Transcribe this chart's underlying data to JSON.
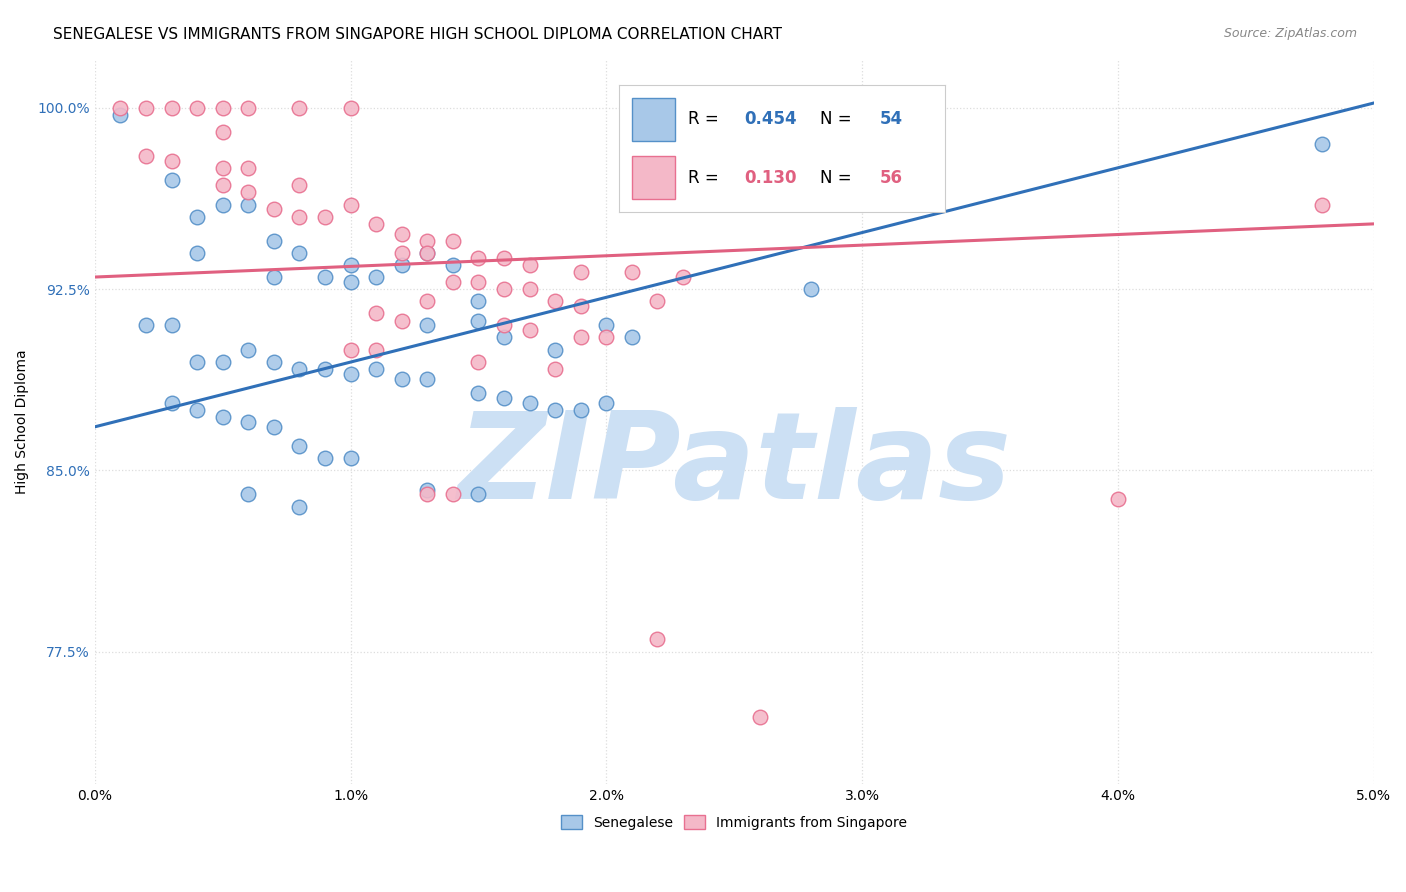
{
  "title": "SENEGALESE VS IMMIGRANTS FROM SINGAPORE HIGH SCHOOL DIPLOMA CORRELATION CHART",
  "source": "Source: ZipAtlas.com",
  "ylabel": "High School Diploma",
  "watermark": "ZIPatlas",
  "blue_color": "#a8c8e8",
  "pink_color": "#f4b8c8",
  "blue_edge_color": "#5590c8",
  "pink_edge_color": "#e87090",
  "blue_line_color": "#3070b8",
  "pink_line_color": "#e06080",
  "legend_blue_color": "#3070b8",
  "legend_pink_color": "#e06080",
  "blue_scatter": [
    [
      0.001,
      0.997
    ],
    [
      0.003,
      0.97
    ],
    [
      0.004,
      0.955
    ],
    [
      0.005,
      0.96
    ],
    [
      0.004,
      0.94
    ],
    [
      0.006,
      0.96
    ],
    [
      0.007,
      0.945
    ],
    [
      0.007,
      0.93
    ],
    [
      0.008,
      0.94
    ],
    [
      0.009,
      0.93
    ],
    [
      0.01,
      0.935
    ],
    [
      0.01,
      0.928
    ],
    [
      0.011,
      0.93
    ],
    [
      0.012,
      0.935
    ],
    [
      0.013,
      0.94
    ],
    [
      0.014,
      0.935
    ],
    [
      0.015,
      0.92
    ],
    [
      0.013,
      0.91
    ],
    [
      0.015,
      0.912
    ],
    [
      0.016,
      0.905
    ],
    [
      0.018,
      0.9
    ],
    [
      0.02,
      0.91
    ],
    [
      0.021,
      0.905
    ],
    [
      0.002,
      0.91
    ],
    [
      0.003,
      0.91
    ],
    [
      0.004,
      0.895
    ],
    [
      0.005,
      0.895
    ],
    [
      0.006,
      0.9
    ],
    [
      0.007,
      0.895
    ],
    [
      0.008,
      0.892
    ],
    [
      0.009,
      0.892
    ],
    [
      0.01,
      0.89
    ],
    [
      0.011,
      0.892
    ],
    [
      0.012,
      0.888
    ],
    [
      0.013,
      0.888
    ],
    [
      0.015,
      0.882
    ],
    [
      0.016,
      0.88
    ],
    [
      0.017,
      0.878
    ],
    [
      0.018,
      0.875
    ],
    [
      0.019,
      0.875
    ],
    [
      0.02,
      0.878
    ],
    [
      0.003,
      0.878
    ],
    [
      0.004,
      0.875
    ],
    [
      0.005,
      0.872
    ],
    [
      0.006,
      0.87
    ],
    [
      0.007,
      0.868
    ],
    [
      0.008,
      0.86
    ],
    [
      0.009,
      0.855
    ],
    [
      0.01,
      0.855
    ],
    [
      0.013,
      0.842
    ],
    [
      0.015,
      0.84
    ],
    [
      0.006,
      0.84
    ],
    [
      0.008,
      0.835
    ],
    [
      0.028,
      0.925
    ],
    [
      0.048,
      0.985
    ]
  ],
  "pink_scatter": [
    [
      0.001,
      1.0
    ],
    [
      0.002,
      1.0
    ],
    [
      0.003,
      1.0
    ],
    [
      0.004,
      1.0
    ],
    [
      0.005,
      1.0
    ],
    [
      0.006,
      1.0
    ],
    [
      0.008,
      1.0
    ],
    [
      0.01,
      1.0
    ],
    [
      0.005,
      0.99
    ],
    [
      0.002,
      0.98
    ],
    [
      0.003,
      0.978
    ],
    [
      0.005,
      0.975
    ],
    [
      0.006,
      0.975
    ],
    [
      0.005,
      0.968
    ],
    [
      0.006,
      0.965
    ],
    [
      0.008,
      0.968
    ],
    [
      0.007,
      0.958
    ],
    [
      0.01,
      0.96
    ],
    [
      0.008,
      0.955
    ],
    [
      0.009,
      0.955
    ],
    [
      0.011,
      0.952
    ],
    [
      0.012,
      0.948
    ],
    [
      0.013,
      0.945
    ],
    [
      0.014,
      0.945
    ],
    [
      0.012,
      0.94
    ],
    [
      0.013,
      0.94
    ],
    [
      0.015,
      0.938
    ],
    [
      0.016,
      0.938
    ],
    [
      0.017,
      0.935
    ],
    [
      0.019,
      0.932
    ],
    [
      0.021,
      0.932
    ],
    [
      0.014,
      0.928
    ],
    [
      0.015,
      0.928
    ],
    [
      0.016,
      0.925
    ],
    [
      0.017,
      0.925
    ],
    [
      0.013,
      0.92
    ],
    [
      0.018,
      0.92
    ],
    [
      0.019,
      0.918
    ],
    [
      0.011,
      0.915
    ],
    [
      0.012,
      0.912
    ],
    [
      0.016,
      0.91
    ],
    [
      0.017,
      0.908
    ],
    [
      0.019,
      0.905
    ],
    [
      0.02,
      0.905
    ],
    [
      0.01,
      0.9
    ],
    [
      0.011,
      0.9
    ],
    [
      0.015,
      0.895
    ],
    [
      0.018,
      0.892
    ],
    [
      0.048,
      0.96
    ],
    [
      0.04,
      0.838
    ],
    [
      0.026,
      0.748
    ],
    [
      0.022,
      0.78
    ],
    [
      0.013,
      0.84
    ],
    [
      0.014,
      0.84
    ],
    [
      0.022,
      0.92
    ],
    [
      0.023,
      0.93
    ]
  ],
  "xlim": [
    0.0,
    0.05
  ],
  "ylim": [
    0.72,
    1.02
  ],
  "xtick_positions": [
    0.0,
    0.01,
    0.02,
    0.03,
    0.04,
    0.05
  ],
  "xtick_labels": [
    "0.0%",
    "1.0%",
    "2.0%",
    "3.0%",
    "4.0%",
    "5.0%"
  ],
  "ytick_positions": [
    0.775,
    0.85,
    0.925,
    1.0
  ],
  "ytick_labels": [
    "77.5%",
    "85.0%",
    "92.5%",
    "100.0%"
  ],
  "blue_line_x": [
    0.0,
    0.05
  ],
  "blue_line_y": [
    0.868,
    1.002
  ],
  "pink_line_x": [
    0.0,
    0.05
  ],
  "pink_line_y": [
    0.93,
    0.952
  ],
  "watermark_color": "#cce0f4",
  "background_color": "#ffffff",
  "grid_color": "#dddddd",
  "title_fontsize": 11,
  "scatter_size": 110
}
